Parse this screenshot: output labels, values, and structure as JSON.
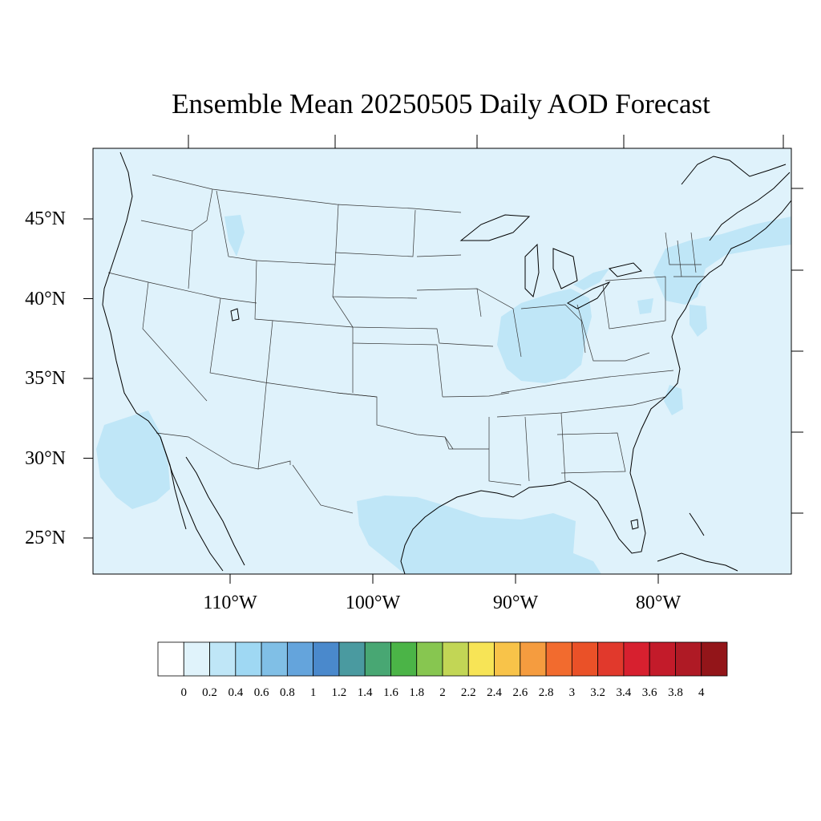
{
  "title": "Ensemble Mean 20250505 Daily AOD Forecast",
  "map": {
    "lat_labels": [
      {
        "text": "45°N",
        "value": 45
      },
      {
        "text": "40°N",
        "value": 40
      },
      {
        "text": "35°N",
        "value": 35
      },
      {
        "text": "30°N",
        "value": 30
      },
      {
        "text": "25°N",
        "value": 25
      }
    ],
    "lon_labels": [
      {
        "text": "110°W",
        "value": -110
      },
      {
        "text": "100°W",
        "value": -100
      },
      {
        "text": "90°W",
        "value": -90
      },
      {
        "text": "80°W",
        "value": -80
      }
    ],
    "background_fill": "#dff2fb",
    "plume_fill": "#bfe6f7",
    "border_color": "#000000",
    "state_line_color": "#333333"
  },
  "colorbar": {
    "labels": [
      "0",
      "0.2",
      "0.4",
      "0.6",
      "0.8",
      "1",
      "1.2",
      "1.4",
      "1.6",
      "1.8",
      "2",
      "2.2",
      "2.4",
      "2.6",
      "2.8",
      "3",
      "3.2",
      "3.4",
      "3.6",
      "3.8",
      "4"
    ],
    "colors": [
      "#ffffff",
      "#e0f3fb",
      "#bfe6f7",
      "#9fd8f3",
      "#80bfe6",
      "#64a4dc",
      "#4a89cc",
      "#4a9aa0",
      "#48a773",
      "#4bb447",
      "#87c650",
      "#c2d655",
      "#f7e456",
      "#f8c349",
      "#f59c3f",
      "#f26b2e",
      "#ea5128",
      "#e1392c",
      "#d7202f",
      "#c31b2a",
      "#af1a25",
      "#931519"
    ]
  }
}
